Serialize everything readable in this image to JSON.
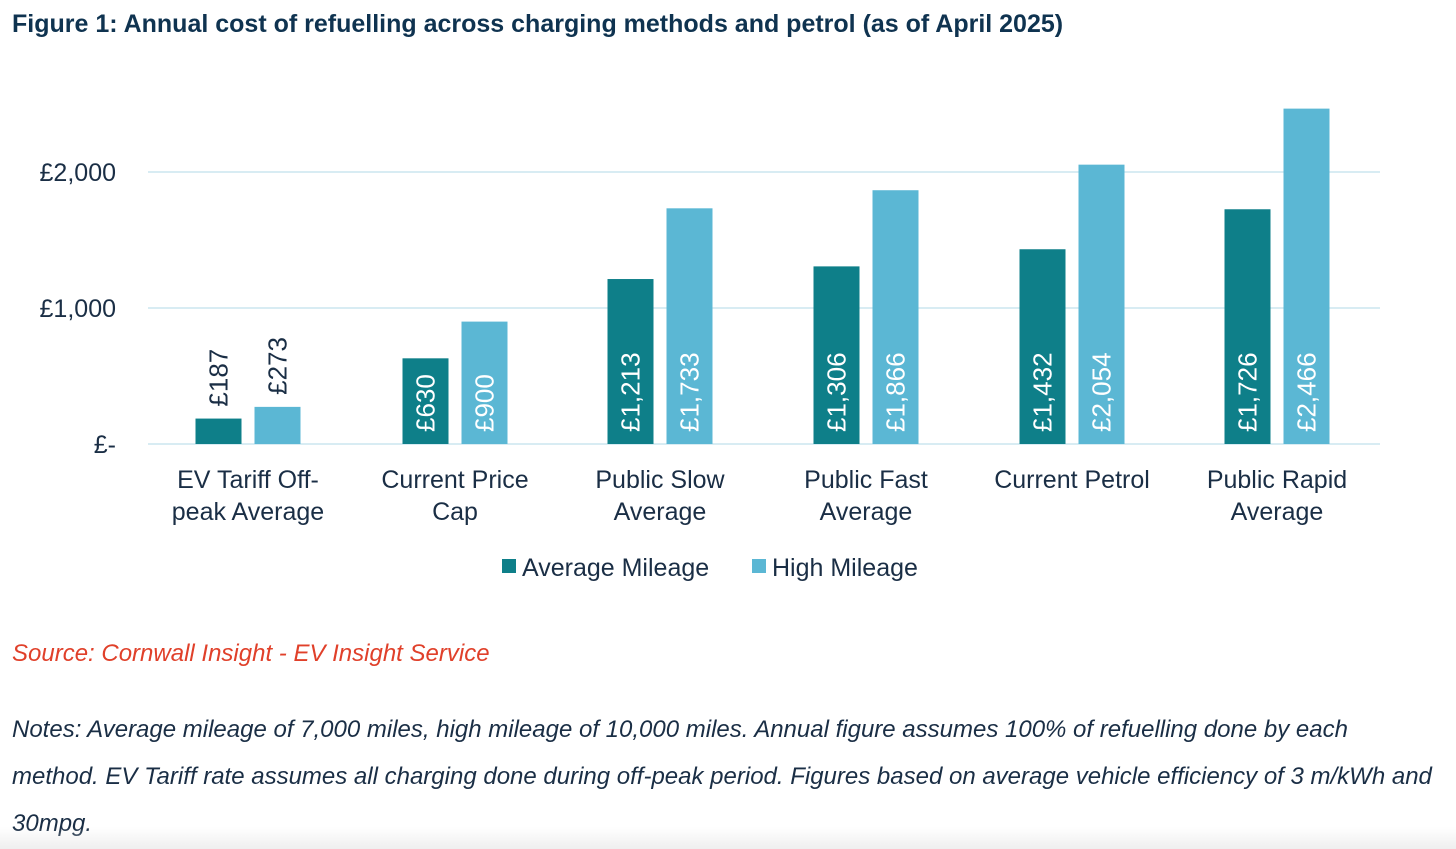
{
  "figure": {
    "title": "Figure 1: Annual cost of refuelling across charging methods and petrol (as of April 2025)",
    "source": "Source: Cornwall Insight - EV Insight Service",
    "notes": "Notes: Average mileage of 7,000 miles, high mileage of 10,000 miles. Annual figure assumes 100% of refuelling done by each method. EV Tariff rate assumes all charging done during off-peak period. Figures based on average vehicle efficiency of 3 m/kWh and 30mpg."
  },
  "chart_data": {
    "type": "bar",
    "title": "Figure 1: Annual cost of refuelling across charging methods and petrol (as of April 2025)",
    "categories": [
      [
        "EV Tariff Off-",
        "peak Average"
      ],
      [
        "Current Price",
        "Cap"
      ],
      [
        "Public Slow",
        "Average"
      ],
      [
        "Public Fast",
        "Average"
      ],
      [
        "Current Petrol"
      ],
      [
        "Public Rapid",
        "Average"
      ]
    ],
    "series": [
      {
        "name": "Average Mileage",
        "color": "#0e7f89",
        "values": [
          187,
          630,
          1213,
          1306,
          1432,
          1726
        ],
        "labels": [
          "£187",
          "£630",
          "£1,213",
          "£1,306",
          "£1,432",
          "£1,726"
        ]
      },
      {
        "name": "High Mileage",
        "color": "#5bb7d4",
        "values": [
          273,
          900,
          1733,
          1866,
          2054,
          2466
        ],
        "labels": [
          "£273",
          "£900",
          "£1,733",
          "£1,866",
          "£2,054",
          "£2,466"
        ]
      }
    ],
    "yticks": [
      {
        "value": 0,
        "label": "£-"
      },
      {
        "value": 1000,
        "label": "£1,000"
      },
      {
        "value": 2000,
        "label": "£2,000"
      }
    ],
    "ylim": [
      0,
      2600
    ],
    "grid": true,
    "legend": "bottom",
    "colors": {
      "grid": "#d8ecf3",
      "label_dark": "#1a2e45",
      "label_light": "#ffffff"
    }
  }
}
